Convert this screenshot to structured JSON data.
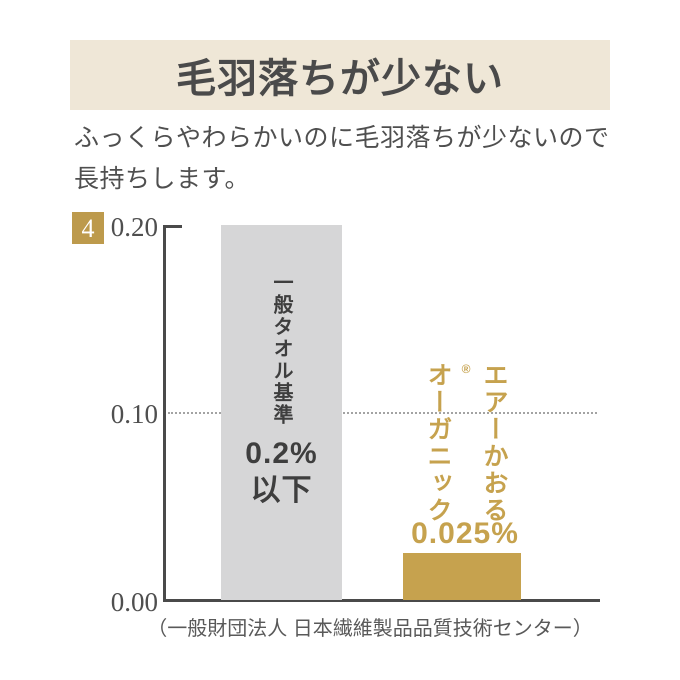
{
  "header": {
    "badge_number": "4",
    "title": "毛羽落ちが少ない"
  },
  "subtitle": {
    "line1": "ふっくらやわらかいのに毛羽落ちが少ないので",
    "line2": "長持ちします。",
    "full_text": "ふっくらやわらかいのに毛羽落ちが少ないので長持ちします。"
  },
  "chart_data": {
    "type": "bar",
    "categories": [
      "一般タオル基準",
      "エアーかおる®オーガニック"
    ],
    "values": [
      0.2,
      0.025
    ],
    "value_labels": [
      "0.2%以下",
      "0.025%"
    ],
    "ylim": [
      0,
      0.2
    ],
    "yticks": [
      "0.20",
      "0.10",
      "0.00"
    ],
    "reference_line_y": 0.1,
    "legend_position": "none",
    "grid": "single dotted horizontal line at 0.10",
    "bar_colors": {
      "standard": "#D6D6D7",
      "product": "#C6A24E"
    },
    "source": "（一般財団法人 日本繊維製品品質技術センター）"
  },
  "chart_labels": {
    "tick_top": "0.20",
    "tick_mid": "0.10",
    "tick_bottom": "0.00",
    "standard_bar_name": "一般タオル基準",
    "standard_bar_value_line1": "0.2%",
    "standard_bar_value_line2": "以下",
    "product_name_col1": "エアーかおる",
    "product_name_reg_mark": "®",
    "product_name_col2": "オーガニック",
    "product_value": "0.025%"
  },
  "colors": {
    "accent_gold": "#C6A24E",
    "badge_gold": "#BD9A4C",
    "title_band_beige": "#EFE7D7",
    "standard_bar_gray": "#D6D6D7",
    "axis_dark": "#4A4A4A",
    "text_dark": "#3E3E3E"
  }
}
